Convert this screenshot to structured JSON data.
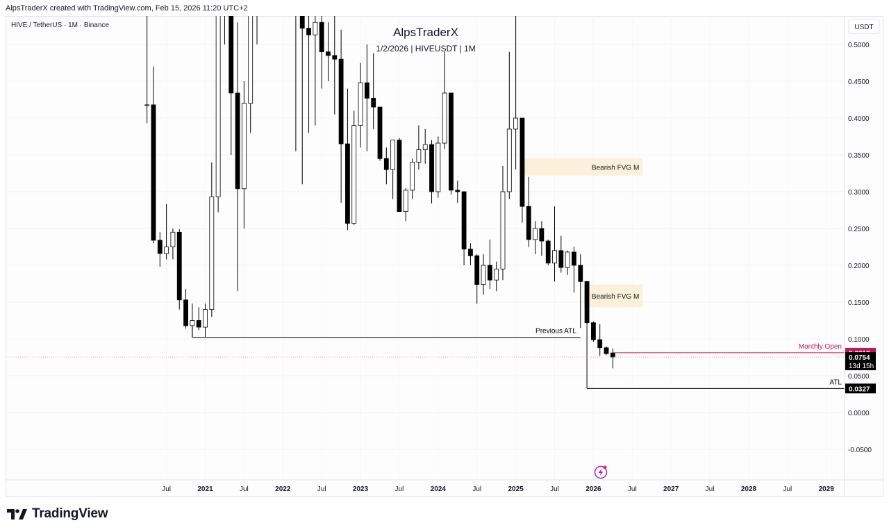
{
  "header": {
    "credit": "AlpsTraderX created with TradingView.com, Feb 15, 2026 11:20 UTC+2",
    "symbol_line": "HIVE / TetherUS · 1M · Binance",
    "author": "AlpsTraderX",
    "subtitle": "1/2/2026 | HIVEUSDT | 1M"
  },
  "footer": {
    "brand": "TradingView"
  },
  "colors": {
    "bull_body": "#ffffff",
    "bear_body": "#000000",
    "wick": "#000000",
    "fvg_fill": "#fbf0d9",
    "monthly_open": "#c2185b",
    "price_line": "#f0a0a0",
    "accent_live": "#e91e63"
  },
  "chart_data": {
    "type": "candlestick",
    "interval": "1M",
    "currency_label": "USDT",
    "y_ticks": [
      "0.5000",
      "0.4500",
      "0.4000",
      "0.3500",
      "0.3000",
      "0.2500",
      "0.2000",
      "0.1500",
      "0.1000",
      "0.0500",
      "0.0000",
      "-0.0500"
    ],
    "y_tick_values": [
      0.5,
      0.45,
      0.4,
      0.35,
      0.3,
      0.25,
      0.2,
      0.15,
      0.1,
      0.05,
      0,
      -0.05
    ],
    "ylim": [
      -0.1,
      0.53
    ],
    "x_ticks": [
      {
        "label": "Jul",
        "date": "2020-07"
      },
      {
        "label": "2021",
        "date": "2021-01"
      },
      {
        "label": "Jul",
        "date": "2021-07"
      },
      {
        "label": "2022",
        "date": "2022-01"
      },
      {
        "label": "Jul",
        "date": "2022-07"
      },
      {
        "label": "2023",
        "date": "2023-01"
      },
      {
        "label": "Jul",
        "date": "2023-07"
      },
      {
        "label": "2024",
        "date": "2024-01"
      },
      {
        "label": "Jul",
        "date": "2024-07"
      },
      {
        "label": "2025",
        "date": "2025-01"
      },
      {
        "label": "Jul",
        "date": "2025-07"
      },
      {
        "label": "2026",
        "date": "2026-01"
      },
      {
        "label": "Jul",
        "date": "2026-07"
      },
      {
        "label": "2027",
        "date": "2027-01"
      },
      {
        "label": "Jul",
        "date": "2027-07"
      },
      {
        "label": "2028",
        "date": "2028-01"
      },
      {
        "label": "Jul",
        "date": "2028-07"
      },
      {
        "label": "2029",
        "date": "2029-01"
      }
    ],
    "candles": [
      {
        "t": "2020-04",
        "o": 0.418,
        "h": 0.57,
        "l": 0.393,
        "c": 0.418
      },
      {
        "t": "2020-05",
        "o": 0.418,
        "h": 0.47,
        "l": 0.23,
        "c": 0.234
      },
      {
        "t": "2020-06",
        "o": 0.234,
        "h": 0.245,
        "l": 0.198,
        "c": 0.216
      },
      {
        "t": "2020-07",
        "o": 0.216,
        "h": 0.283,
        "l": 0.208,
        "c": 0.225
      },
      {
        "t": "2020-08",
        "o": 0.225,
        "h": 0.25,
        "l": 0.208,
        "c": 0.245
      },
      {
        "t": "2020-09",
        "o": 0.245,
        "h": 0.249,
        "l": 0.14,
        "c": 0.153
      },
      {
        "t": "2020-10",
        "o": 0.153,
        "h": 0.168,
        "l": 0.114,
        "c": 0.118
      },
      {
        "t": "2020-11",
        "o": 0.118,
        "h": 0.148,
        "l": 0.102,
        "c": 0.125
      },
      {
        "t": "2020-12",
        "o": 0.125,
        "h": 0.143,
        "l": 0.112,
        "c": 0.116
      },
      {
        "t": "2021-01",
        "o": 0.116,
        "h": 0.148,
        "l": 0.103,
        "c": 0.14
      },
      {
        "t": "2021-02",
        "o": 0.14,
        "h": 0.34,
        "l": 0.13,
        "c": 0.293
      },
      {
        "t": "2021-03",
        "o": 0.293,
        "h": 0.62,
        "l": 0.272,
        "c": 0.55
      },
      {
        "t": "2021-04",
        "o": 0.55,
        "h": 0.85,
        "l": 0.5,
        "c": 0.78
      },
      {
        "t": "2021-05",
        "o": 0.78,
        "h": 0.95,
        "l": 0.35,
        "c": 0.434
      },
      {
        "t": "2021-06",
        "o": 0.434,
        "h": 0.53,
        "l": 0.165,
        "c": 0.304
      },
      {
        "t": "2021-07",
        "o": 0.304,
        "h": 0.45,
        "l": 0.25,
        "c": 0.42
      },
      {
        "t": "2021-08",
        "o": 0.42,
        "h": 0.58,
        "l": 0.38,
        "c": 0.56
      },
      {
        "t": "2021-09",
        "o": 0.56,
        "h": 0.85,
        "l": 0.5,
        "c": 0.62
      },
      {
        "t": "2022-03",
        "o": 0.6,
        "h": 0.85,
        "l": 0.355,
        "c": 0.65
      },
      {
        "t": "2022-04",
        "o": 0.65,
        "h": 0.8,
        "l": 0.31,
        "c": 0.522
      },
      {
        "t": "2022-05",
        "o": 0.522,
        "h": 0.6,
        "l": 0.38,
        "c": 0.513
      },
      {
        "t": "2022-06",
        "o": 0.513,
        "h": 0.55,
        "l": 0.39,
        "c": 0.53
      },
      {
        "t": "2022-07",
        "o": 0.53,
        "h": 0.56,
        "l": 0.44,
        "c": 0.49
      },
      {
        "t": "2022-08",
        "o": 0.49,
        "h": 0.53,
        "l": 0.45,
        "c": 0.485
      },
      {
        "t": "2022-09",
        "o": 0.485,
        "h": 0.56,
        "l": 0.405,
        "c": 0.48
      },
      {
        "t": "2022-10",
        "o": 0.48,
        "h": 0.52,
        "l": 0.285,
        "c": 0.365
      },
      {
        "t": "2022-11",
        "o": 0.365,
        "h": 0.44,
        "l": 0.248,
        "c": 0.257
      },
      {
        "t": "2022-12",
        "o": 0.257,
        "h": 0.41,
        "l": 0.255,
        "c": 0.39
      },
      {
        "t": "2023-01",
        "o": 0.39,
        "h": 0.475,
        "l": 0.36,
        "c": 0.448
      },
      {
        "t": "2023-02",
        "o": 0.448,
        "h": 0.5,
        "l": 0.355,
        "c": 0.427
      },
      {
        "t": "2023-03",
        "o": 0.427,
        "h": 0.488,
        "l": 0.385,
        "c": 0.415
      },
      {
        "t": "2023-04",
        "o": 0.415,
        "h": 0.415,
        "l": 0.342,
        "c": 0.345
      },
      {
        "t": "2023-05",
        "o": 0.345,
        "h": 0.36,
        "l": 0.31,
        "c": 0.33
      },
      {
        "t": "2023-06",
        "o": 0.33,
        "h": 0.37,
        "l": 0.29,
        "c": 0.37
      },
      {
        "t": "2023-07",
        "o": 0.37,
        "h": 0.373,
        "l": 0.273,
        "c": 0.273
      },
      {
        "t": "2023-08",
        "o": 0.273,
        "h": 0.305,
        "l": 0.26,
        "c": 0.302
      },
      {
        "t": "2023-09",
        "o": 0.302,
        "h": 0.345,
        "l": 0.29,
        "c": 0.34
      },
      {
        "t": "2023-10",
        "o": 0.34,
        "h": 0.39,
        "l": 0.33,
        "c": 0.357
      },
      {
        "t": "2023-11",
        "o": 0.357,
        "h": 0.385,
        "l": 0.338,
        "c": 0.364
      },
      {
        "t": "2023-12",
        "o": 0.364,
        "h": 0.37,
        "l": 0.284,
        "c": 0.3
      },
      {
        "t": "2024-01",
        "o": 0.3,
        "h": 0.375,
        "l": 0.292,
        "c": 0.366
      },
      {
        "t": "2024-02",
        "o": 0.366,
        "h": 0.49,
        "l": 0.358,
        "c": 0.434
      },
      {
        "t": "2024-03",
        "o": 0.434,
        "h": 0.434,
        "l": 0.296,
        "c": 0.302
      },
      {
        "t": "2024-04",
        "o": 0.302,
        "h": 0.315,
        "l": 0.285,
        "c": 0.3
      },
      {
        "t": "2024-05",
        "o": 0.3,
        "h": 0.3,
        "l": 0.2,
        "c": 0.222
      },
      {
        "t": "2024-06",
        "o": 0.222,
        "h": 0.23,
        "l": 0.2,
        "c": 0.213
      },
      {
        "t": "2024-07",
        "o": 0.213,
        "h": 0.215,
        "l": 0.148,
        "c": 0.174
      },
      {
        "t": "2024-08",
        "o": 0.174,
        "h": 0.215,
        "l": 0.16,
        "c": 0.2
      },
      {
        "t": "2024-09",
        "o": 0.2,
        "h": 0.235,
        "l": 0.168,
        "c": 0.18
      },
      {
        "t": "2024-10",
        "o": 0.18,
        "h": 0.205,
        "l": 0.165,
        "c": 0.195
      },
      {
        "t": "2024-11",
        "o": 0.195,
        "h": 0.335,
        "l": 0.18,
        "c": 0.3
      },
      {
        "t": "2024-12",
        "o": 0.3,
        "h": 0.49,
        "l": 0.29,
        "c": 0.385
      },
      {
        "t": "2025-01",
        "o": 0.385,
        "h": 0.55,
        "l": 0.33,
        "c": 0.4
      },
      {
        "t": "2025-02",
        "o": 0.4,
        "h": 0.4,
        "l": 0.258,
        "c": 0.28
      },
      {
        "t": "2025-03",
        "o": 0.28,
        "h": 0.32,
        "l": 0.225,
        "c": 0.235
      },
      {
        "t": "2025-04",
        "o": 0.235,
        "h": 0.26,
        "l": 0.215,
        "c": 0.25
      },
      {
        "t": "2025-05",
        "o": 0.25,
        "h": 0.26,
        "l": 0.213,
        "c": 0.233
      },
      {
        "t": "2025-06",
        "o": 0.233,
        "h": 0.235,
        "l": 0.2,
        "c": 0.203
      },
      {
        "t": "2025-07",
        "o": 0.203,
        "h": 0.28,
        "l": 0.178,
        "c": 0.22
      },
      {
        "t": "2025-08",
        "o": 0.22,
        "h": 0.24,
        "l": 0.19,
        "c": 0.197
      },
      {
        "t": "2025-09",
        "o": 0.197,
        "h": 0.22,
        "l": 0.187,
        "c": 0.218
      },
      {
        "t": "2025-10",
        "o": 0.218,
        "h": 0.225,
        "l": 0.163,
        "c": 0.2
      },
      {
        "t": "2025-11",
        "o": 0.2,
        "h": 0.215,
        "l": 0.115,
        "c": 0.178
      },
      {
        "t": "2025-12",
        "o": 0.178,
        "h": 0.178,
        "l": 0.118,
        "c": 0.122
      },
      {
        "t": "2026-01",
        "o": 0.122,
        "h": 0.124,
        "l": 0.096,
        "c": 0.099
      },
      {
        "t": "2026-02",
        "o": 0.099,
        "h": 0.12,
        "l": 0.077,
        "c": 0.088
      },
      {
        "t": "2026-03",
        "o": 0.088,
        "h": 0.09,
        "l": 0.078,
        "c": 0.08
      },
      {
        "t": "2026-04",
        "o": 0.081,
        "h": 0.087,
        "l": 0.06,
        "c": 0.0754
      }
    ],
    "zones": [
      {
        "label": "Bearish FVG M",
        "start": "2025-01",
        "end": "2026-07",
        "low": 0.322,
        "high": 0.345
      },
      {
        "label": "Bearish FVG M",
        "start": "2025-11",
        "end": "2026-07",
        "low": 0.143,
        "high": 0.174
      }
    ],
    "levels": [
      {
        "id": "previous-atl",
        "label": "Previous ATL",
        "value": 0.1022,
        "start": "2020-11",
        "end": "2025-11"
      },
      {
        "id": "atl",
        "label": "ATL",
        "value": 0.0327,
        "start": "2025-12",
        "end": "2029-08",
        "badge": "0.0327"
      },
      {
        "id": "monthly-open",
        "label": "Monthly Open",
        "value": 0.0812,
        "start": "2026-04",
        "end": "2029-08",
        "badge": "0.0812"
      }
    ],
    "current_price": {
      "value": 0.0754,
      "label": "0.0754",
      "countdown": "13d 15h"
    }
  }
}
